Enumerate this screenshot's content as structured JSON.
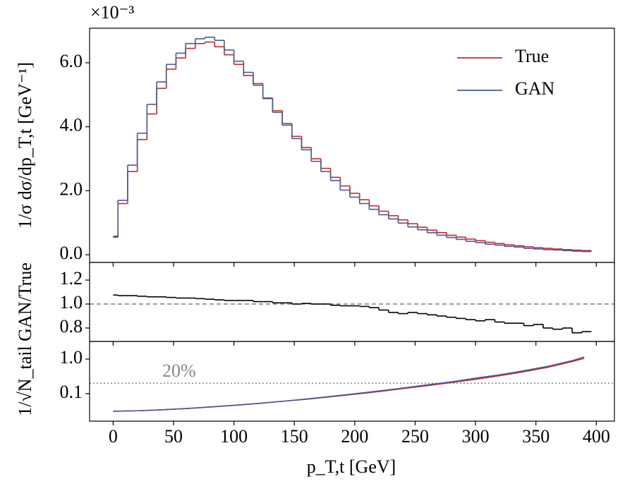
{
  "chart_data": [
    {
      "type": "histogram",
      "offset_text": "×10⁻³",
      "ylabel": "1/σ dσ/dp_T,t [GeV⁻¹]",
      "xlim": [
        -19.5,
        415
      ],
      "ylim": [
        -0.24,
        7.08
      ],
      "yticks": [
        {
          "value": 0,
          "label": "0.0"
        },
        {
          "value": 2,
          "label": "2.0"
        },
        {
          "value": 4,
          "label": "4.0"
        },
        {
          "value": 6,
          "label": "6.0"
        }
      ],
      "legend": "upper right",
      "bins": [
        0,
        4,
        12,
        20,
        28,
        36,
        44,
        52,
        60,
        68,
        76,
        84,
        92,
        100,
        108,
        116,
        124,
        132,
        140,
        148,
        156,
        164,
        172,
        180,
        188,
        196,
        204,
        212,
        220,
        228,
        236,
        244,
        252,
        260,
        268,
        276,
        284,
        292,
        300,
        308,
        316,
        324,
        332,
        340,
        348,
        356,
        364,
        372,
        380,
        388,
        396
      ],
      "series": [
        {
          "name": "True",
          "color": "#c62830",
          "values": [
            0.55,
            1.6,
            2.6,
            3.6,
            4.4,
            5.2,
            5.8,
            6.15,
            6.45,
            6.6,
            6.65,
            6.5,
            6.25,
            5.95,
            5.6,
            5.3,
            4.9,
            4.5,
            4.1,
            3.7,
            3.35,
            3.0,
            2.7,
            2.42,
            2.15,
            1.92,
            1.72,
            1.53,
            1.36,
            1.22,
            1.09,
            0.97,
            0.86,
            0.77,
            0.69,
            0.61,
            0.55,
            0.49,
            0.44,
            0.39,
            0.35,
            0.31,
            0.28,
            0.25,
            0.22,
            0.2,
            0.18,
            0.16,
            0.145,
            0.13
          ]
        },
        {
          "name": "GAN",
          "color": "#4a5896",
          "values": [
            0.58,
            1.7,
            2.8,
            3.8,
            4.7,
            5.4,
            5.95,
            6.3,
            6.6,
            6.75,
            6.8,
            6.7,
            6.4,
            6.05,
            5.7,
            5.35,
            4.88,
            4.45,
            4.05,
            3.63,
            3.28,
            2.92,
            2.6,
            2.32,
            2.02,
            1.8,
            1.6,
            1.42,
            1.25,
            1.12,
            0.99,
            0.87,
            0.78,
            0.69,
            0.61,
            0.54,
            0.48,
            0.42,
            0.38,
            0.33,
            0.3,
            0.26,
            0.24,
            0.2,
            0.18,
            0.16,
            0.15,
            0.13,
            0.11,
            0.1
          ]
        }
      ]
    },
    {
      "type": "histogram",
      "ylabel": "GAN/True",
      "xlim": [
        -19.5,
        415
      ],
      "ylim": [
        0.688,
        1.347
      ],
      "yticks": [
        0.8,
        {
          "value": 1,
          "label": "1.0"
        },
        1.2
      ],
      "refline": 1,
      "refline_style": "dashed",
      "refline_color": "#888888",
      "bins": [
        0,
        4,
        12,
        20,
        28,
        36,
        44,
        52,
        60,
        68,
        76,
        84,
        92,
        100,
        108,
        116,
        124,
        132,
        140,
        148,
        156,
        164,
        172,
        180,
        188,
        196,
        204,
        212,
        220,
        228,
        236,
        244,
        252,
        260,
        268,
        276,
        284,
        292,
        300,
        308,
        316,
        324,
        332,
        340,
        348,
        356,
        364,
        372,
        380,
        388,
        396
      ],
      "series": [
        {
          "color": "#000000",
          "values": [
            1.075,
            1.07,
            1.07,
            1.065,
            1.06,
            1.06,
            1.055,
            1.05,
            1.05,
            1.045,
            1.04,
            1.035,
            1.03,
            1.03,
            1.03,
            1.02,
            1.02,
            1.01,
            1.01,
            1.0,
            1.005,
            1.0,
            1.0,
            0.99,
            0.985,
            0.985,
            0.98,
            0.97,
            0.95,
            0.93,
            0.92,
            0.93,
            0.92,
            0.91,
            0.9,
            0.89,
            0.88,
            0.87,
            0.86,
            0.87,
            0.85,
            0.84,
            0.84,
            0.82,
            0.83,
            0.8,
            0.79,
            0.8,
            0.76,
            0.77
          ]
        }
      ]
    },
    {
      "type": "line",
      "ylabel": "1/√N_tail",
      "xlabel": "p_T,t [GeV]",
      "log_y": true,
      "xlim": [
        -19.5,
        415
      ],
      "ylim": [
        0.016,
        3.24
      ],
      "xticks": [
        0,
        50,
        100,
        150,
        200,
        250,
        300,
        350,
        400
      ],
      "yticks": [
        0.1,
        {
          "value": 1,
          "label": "1.0"
        }
      ],
      "refline": 0.2,
      "refline_style": "dotted",
      "refline_color": "#888888",
      "annotation": "20%",
      "x": [
        0,
        20,
        40,
        60,
        80,
        100,
        120,
        140,
        160,
        180,
        200,
        220,
        240,
        260,
        280,
        300,
        320,
        340,
        360,
        380,
        390
      ],
      "series": [
        {
          "name": "True",
          "color": "#c62830",
          "values": [
            0.031,
            0.032,
            0.034,
            0.037,
            0.041,
            0.046,
            0.052,
            0.06,
            0.069,
            0.081,
            0.096,
            0.115,
            0.14,
            0.17,
            0.21,
            0.26,
            0.33,
            0.43,
            0.58,
            0.85,
            1.05
          ]
        },
        {
          "name": "GAN",
          "color": "#4a5896",
          "values": [
            0.031,
            0.032,
            0.034,
            0.037,
            0.041,
            0.046,
            0.052,
            0.06,
            0.07,
            0.083,
            0.099,
            0.12,
            0.145,
            0.18,
            0.22,
            0.28,
            0.35,
            0.46,
            0.62,
            0.9,
            1.15
          ]
        }
      ]
    }
  ]
}
